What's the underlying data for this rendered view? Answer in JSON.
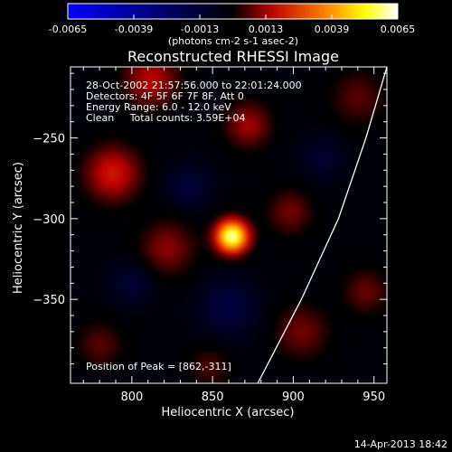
{
  "chart_data": {
    "type": "heatmap",
    "title": "Reconstructed RHESSI Image",
    "xlabel": "Heliocentric X (arcsec)",
    "ylabel": "Heliocentric Y (arcsec)",
    "xlim": [
      762,
      958
    ],
    "ylim": [
      -402,
      -206
    ],
    "xticks": [
      800,
      850,
      900,
      950
    ],
    "yticks": [
      -250,
      -300,
      -350
    ],
    "colorbar": {
      "range": [
        -0.0065,
        0.0065
      ],
      "ticks": [
        "-0.0065",
        "-0.0039",
        "-0.0013",
        "0.0013",
        "0.0039",
        "0.0065"
      ],
      "unit_label": "(photons cm-2 s-1 asec-2)",
      "colormap": [
        "#0000ff",
        "#000000",
        "#c00000",
        "#ff8000",
        "#ffff00",
        "#ffffff"
      ]
    },
    "annotations": [
      "28-Oct-2002 21:57:56.000 to 22:01:24.000",
      "Detectors: 4F 5F 6F 7F 8F, Att 0",
      "Energy Range: 6.0 - 12.0 keV",
      "Clean     Total counts: 3.59E+04"
    ],
    "peak_label": "Position of Peak = [862,-311]",
    "peak": {
      "x": 862,
      "y": -311,
      "value": 0.0065
    },
    "sources": [
      {
        "x": 862,
        "y": -311,
        "sigma": 7,
        "amp": 0.0065
      },
      {
        "x": 788,
        "y": -272,
        "sigma": 12,
        "amp": 0.0022
      },
      {
        "x": 812,
        "y": -214,
        "sigma": 12,
        "amp": 0.0018
      },
      {
        "x": 872,
        "y": -242,
        "sigma": 10,
        "amp": 0.0016
      },
      {
        "x": 822,
        "y": -318,
        "sigma": 12,
        "amp": 0.0014
      },
      {
        "x": 898,
        "y": -296,
        "sigma": 10,
        "amp": 0.0012
      },
      {
        "x": 905,
        "y": -370,
        "sigma": 12,
        "amp": 0.0012
      },
      {
        "x": 945,
        "y": -345,
        "sigma": 10,
        "amp": 0.0011
      },
      {
        "x": 780,
        "y": -378,
        "sigma": 10,
        "amp": 0.001
      },
      {
        "x": 940,
        "y": -225,
        "sigma": 12,
        "amp": 0.001
      },
      {
        "x": 848,
        "y": -392,
        "sigma": 9,
        "amp": 0.0009
      },
      {
        "x": 835,
        "y": -280,
        "sigma": 9,
        "amp": -0.0011
      },
      {
        "x": 860,
        "y": -355,
        "sigma": 12,
        "amp": -0.0013
      },
      {
        "x": 800,
        "y": -340,
        "sigma": 9,
        "amp": -0.001
      },
      {
        "x": 918,
        "y": -262,
        "sigma": 9,
        "amp": -0.0009
      }
    ],
    "limb": [
      [
        958,
        -206
      ],
      [
        945,
        -250
      ],
      [
        928,
        -300
      ],
      [
        905,
        -350
      ],
      [
        878,
        -402
      ]
    ],
    "limb_color": "#ffffff"
  },
  "footer_date": "14-Apr-2013 18:42"
}
